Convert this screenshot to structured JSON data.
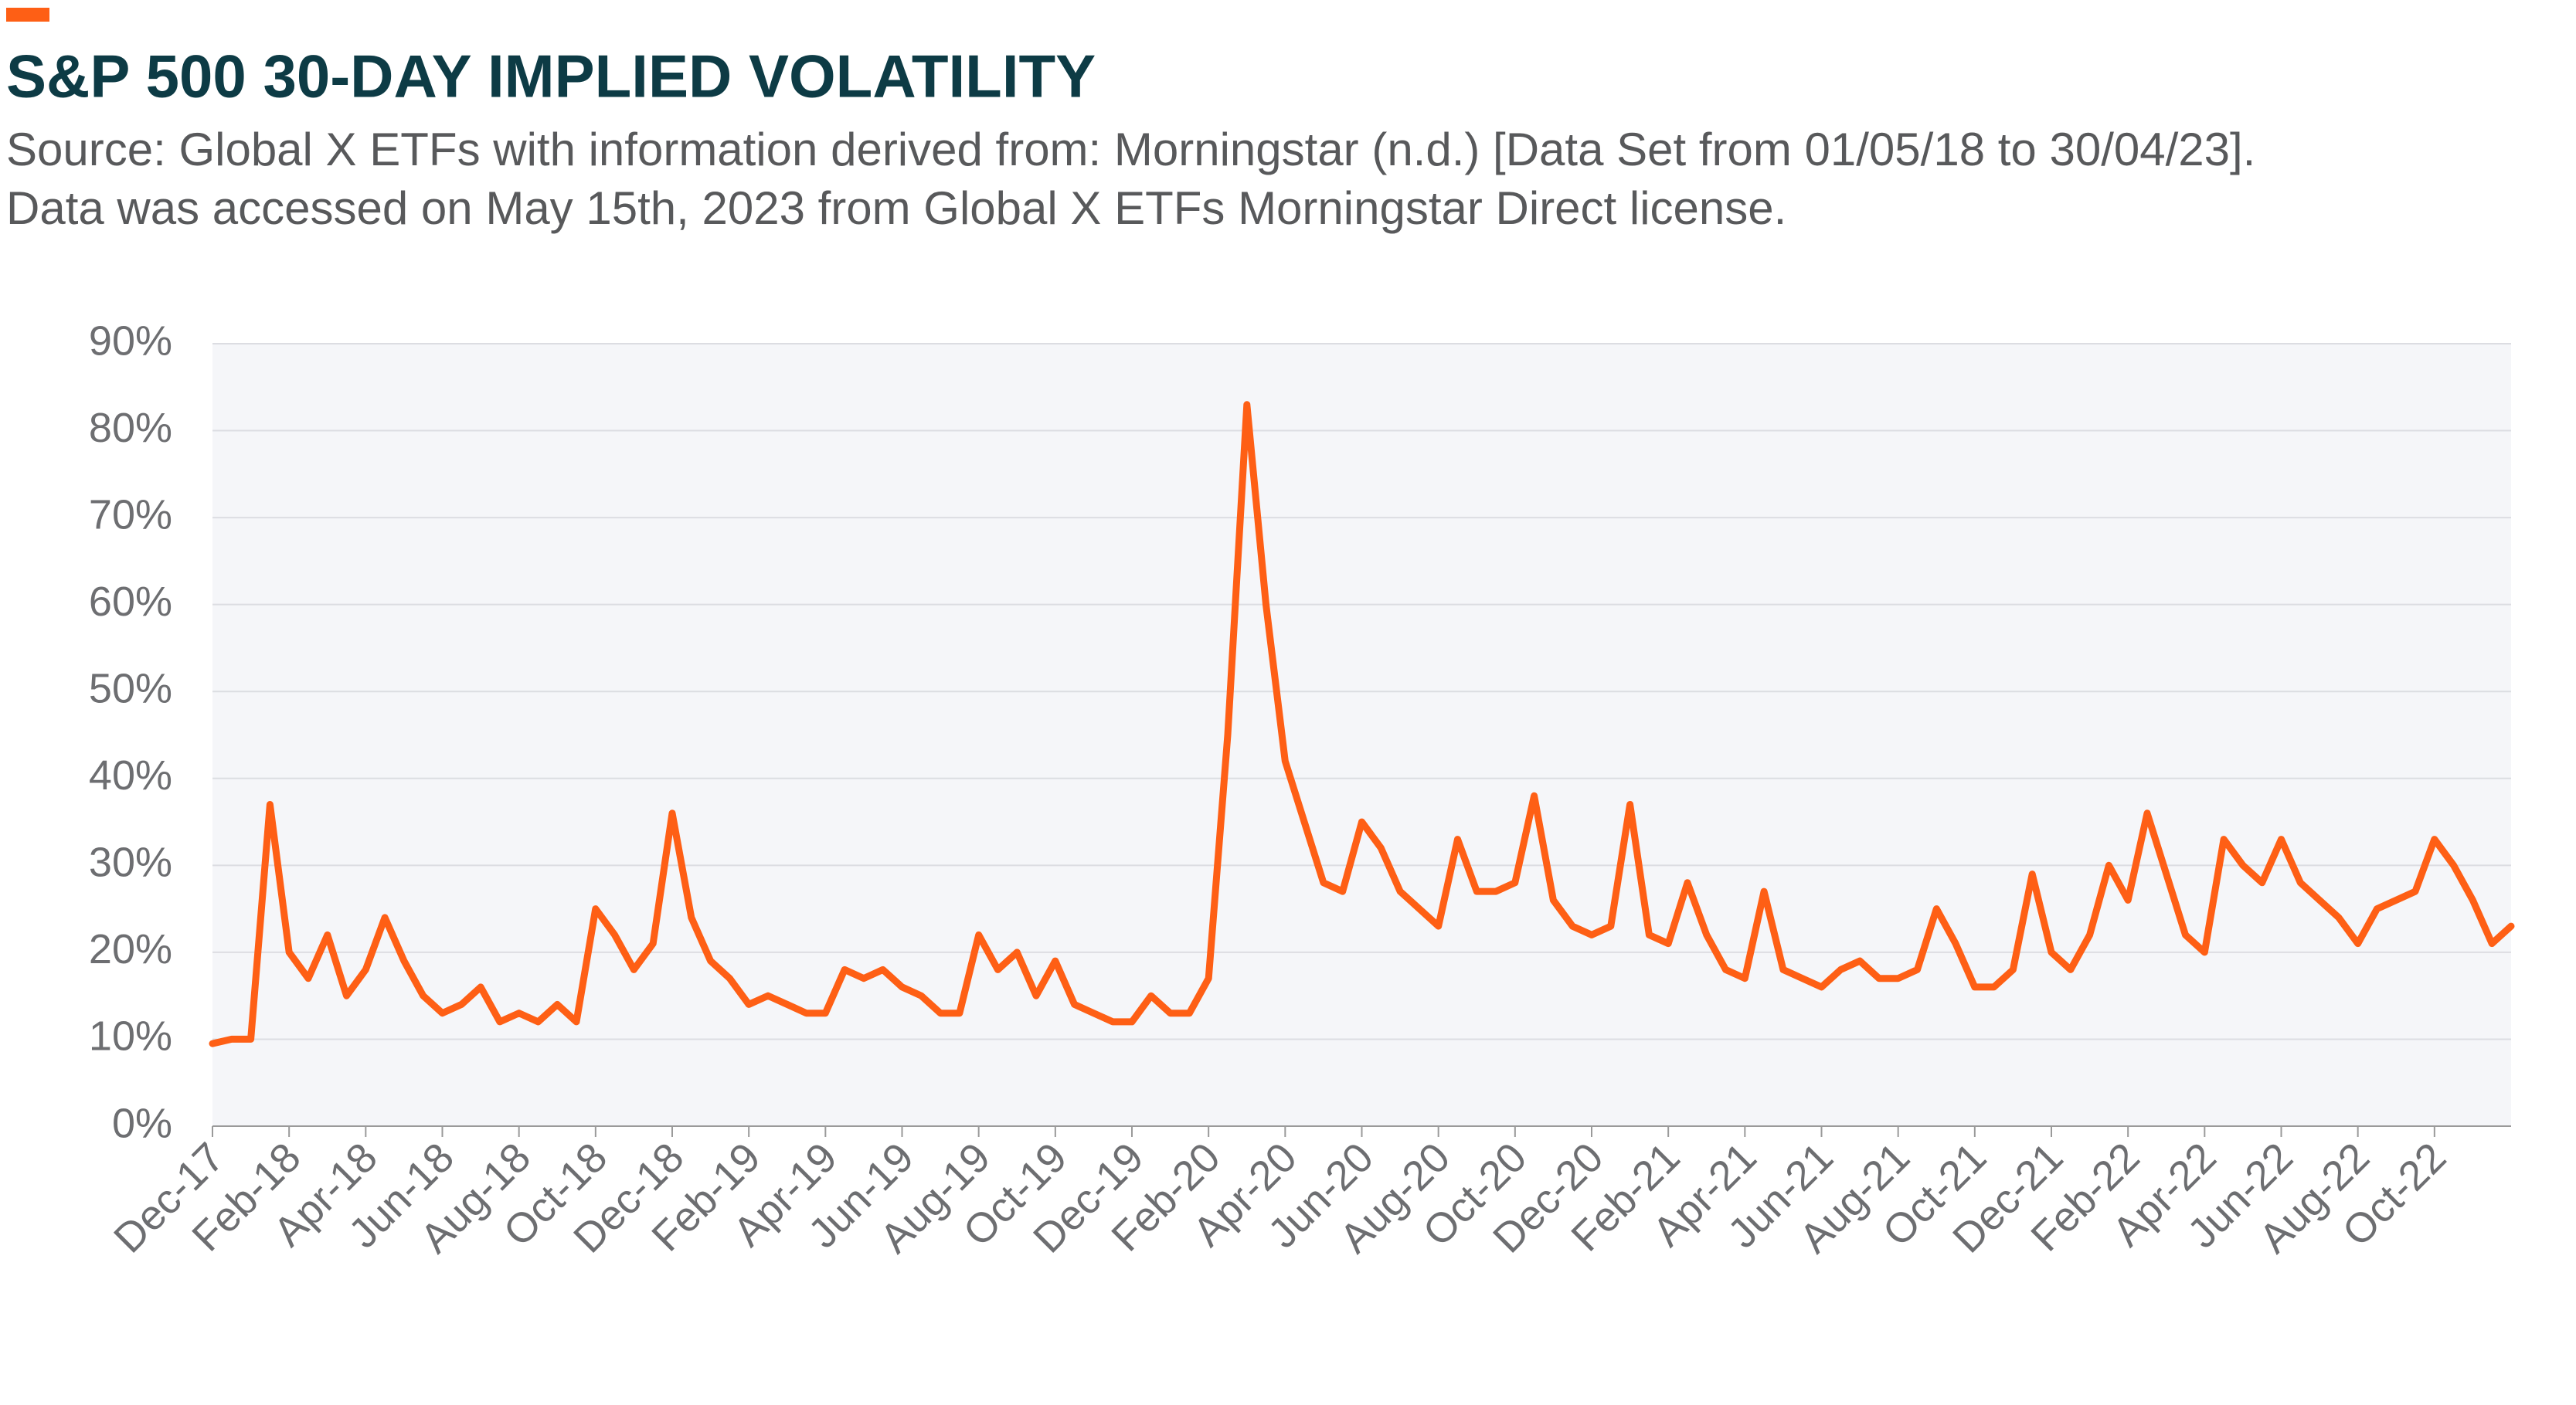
{
  "chart_data": {
    "type": "line",
    "title": "S&P 500 30-DAY IMPLIED VOLATILITY",
    "subtitle": [
      "Source: Global X ETFs with information derived from: Morningstar (n.d.) [Data Set from 01/05/18 to 30/04/23].",
      "Data was accessed on May 15th, 2023 from Global X ETFs Morningstar Direct license."
    ],
    "categories": [
      "Dec-17",
      null,
      null,
      null,
      "Feb-18",
      null,
      null,
      null,
      "Apr-18",
      null,
      null,
      null,
      "Jun-18",
      null,
      null,
      null,
      "Aug-18",
      null,
      null,
      null,
      "Oct-18",
      null,
      null,
      null,
      "Dec-18",
      null,
      null,
      null,
      "Feb-19",
      null,
      null,
      null,
      "Apr-19",
      null,
      null,
      null,
      "Jun-19",
      null,
      null,
      null,
      "Aug-19",
      null,
      null,
      null,
      "Oct-19",
      null,
      null,
      null,
      "Dec-19",
      null,
      null,
      null,
      "Feb-20",
      null,
      null,
      null,
      "Apr-20",
      null,
      null,
      null,
      "Jun-20",
      null,
      null,
      null,
      "Aug-20",
      null,
      null,
      null,
      "Oct-20",
      null,
      null,
      null,
      "Dec-20",
      null,
      null,
      null,
      "Feb-21",
      null,
      null,
      null,
      "Apr-21",
      null,
      null,
      null,
      "Jun-21",
      null,
      null,
      null,
      "Aug-21",
      null,
      null,
      null,
      "Oct-21",
      null,
      null,
      null,
      "Dec-21",
      null,
      null,
      null,
      "Feb-22",
      null,
      null,
      null,
      "Apr-22",
      null,
      null,
      null,
      "Jun-22",
      null,
      null,
      null,
      "Aug-22",
      null,
      null,
      null,
      "Oct-22",
      null,
      null,
      null,
      null
    ],
    "series": [
      {
        "name": "S&P 500 30-Day Implied Volatility",
        "color": "#fe5f15",
        "values": [
          9.5,
          10,
          10,
          37,
          20,
          17,
          22,
          15,
          18,
          24,
          19,
          15,
          13,
          14,
          16,
          12,
          13,
          12,
          14,
          12,
          25,
          22,
          18,
          21,
          36,
          24,
          19,
          17,
          14,
          15,
          14,
          13,
          13,
          18,
          17,
          18,
          16,
          15,
          13,
          13,
          22,
          18,
          20,
          15,
          19,
          14,
          13,
          12,
          12,
          15,
          13,
          13,
          17,
          45,
          83,
          60,
          42,
          35,
          28,
          27,
          35,
          32,
          27,
          25,
          23,
          33,
          27,
          27,
          28,
          38,
          26,
          23,
          22,
          23,
          37,
          22,
          21,
          28,
          22,
          18,
          17,
          27,
          18,
          17,
          16,
          18,
          19,
          17,
          17,
          18,
          25,
          21,
          16,
          16,
          18,
          29,
          20,
          18,
          22,
          30,
          26,
          36,
          29,
          22,
          20,
          33,
          30,
          28,
          33,
          28,
          26,
          24,
          21,
          25,
          26,
          27,
          33,
          30,
          26,
          21,
          23
        ]
      }
    ],
    "ylim": [
      0,
      90
    ],
    "yticks": [
      {
        "value": 0,
        "label": "0%"
      },
      {
        "value": 10,
        "label": "10%"
      },
      {
        "value": 20,
        "label": "20%"
      },
      {
        "value": 30,
        "label": "30%"
      },
      {
        "value": 40,
        "label": "40%"
      },
      {
        "value": 50,
        "label": "50%"
      },
      {
        "value": 60,
        "label": "60%"
      },
      {
        "value": 70,
        "label": "70%"
      },
      {
        "value": 80,
        "label": "80%"
      },
      {
        "value": 90,
        "label": "90%"
      }
    ],
    "grid": true
  }
}
